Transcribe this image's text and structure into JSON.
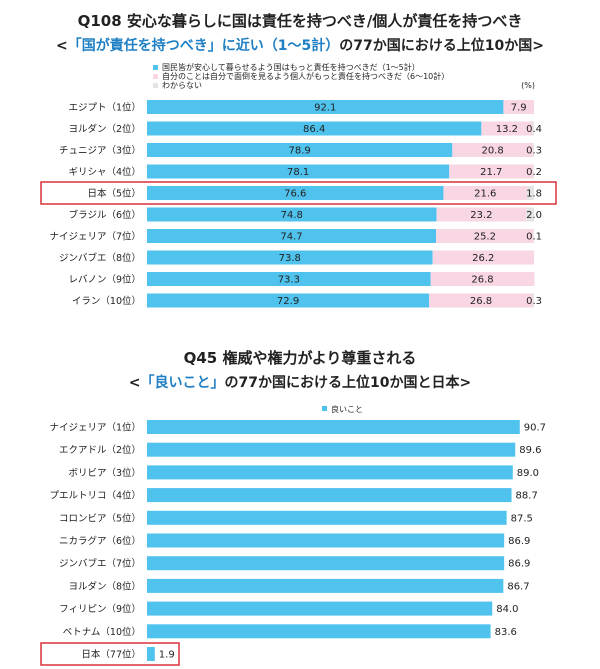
{
  "chart_data": [
    {
      "type": "bar",
      "stacked": true,
      "orientation": "horizontal",
      "title": "Q108 安心な暮らしに国は責任を持つべき/個人が責任を持つべき",
      "subtitle": {
        "open": "<",
        "highlight": "「国が責任を持つべき」に近い（1～5計）",
        "rest": "の77か国における上位10か国",
        "close": ">"
      },
      "unit_label": "(%)",
      "categories": [
        "エジプト（1位）",
        "ヨルダン（2位）",
        "チュニジア（3位）",
        "ギリシャ（4位）",
        "日本（5位）",
        "ブラジル（6位）",
        "ナイジェリア（7位）",
        "ジンバブエ（8位）",
        "レバノン（9位）",
        "イラン（10位）"
      ],
      "series": [
        {
          "name": "国民皆が安心して暮らせるよう国はもっと責任を持つべきだ（1～5計）",
          "color": "#4fc3ee",
          "values": [
            92.1,
            86.4,
            78.9,
            78.1,
            76.6,
            74.8,
            74.7,
            73.8,
            73.3,
            72.9
          ]
        },
        {
          "name": "自分のことは自分で面倒を見るよう個人がもっと責任を持つべきだ（6～10計）",
          "color": "#f9d6e4",
          "values": [
            7.9,
            13.2,
            20.8,
            21.7,
            21.6,
            23.2,
            25.2,
            26.2,
            26.8,
            26.8
          ]
        },
        {
          "name": "わからない",
          "color": "#e4e4e4",
          "values": [
            0,
            0.4,
            0.3,
            0.2,
            1.8,
            2.0,
            0.1,
            0,
            0,
            0.3
          ]
        }
      ],
      "label_strings": [
        [
          "92.1",
          "7.9",
          ""
        ],
        [
          "86.4",
          "13.2",
          "0.4"
        ],
        [
          "78.9",
          "20.8",
          "0.3"
        ],
        [
          "78.1",
          "21.7",
          "0.2"
        ],
        [
          "76.6",
          "21.6",
          "1.8"
        ],
        [
          "74.8",
          "23.2",
          "2.0"
        ],
        [
          "74.7",
          "25.2",
          "0.1"
        ],
        [
          "73.8",
          "26.2",
          ""
        ],
        [
          "73.3",
          "26.8",
          ""
        ],
        [
          "72.9",
          "26.8",
          "0.3"
        ]
      ],
      "xlim": [
        0,
        100
      ],
      "highlight_category": "日本（5位）",
      "highlight_color": "#d9323a"
    },
    {
      "type": "bar",
      "orientation": "horizontal",
      "title": "Q45 権威や権力がより尊重される",
      "subtitle": {
        "open": "<",
        "highlight": "「良いこと」",
        "rest": "の77か国における上位10か国と日本",
        "close": ">"
      },
      "categories": [
        "ナイジェリア（1位）",
        "エクアドル（2位）",
        "ボリビア（3位）",
        "プエルトリコ（4位）",
        "コロンビア（5位）",
        "ニカラグア（6位）",
        "ジンバブエ（7位）",
        "ヨルダン（8位）",
        "フィリピン（9位）",
        "ベトナム（10位）",
        "日本（77位）"
      ],
      "series": [
        {
          "name": "良いこと",
          "color": "#4fc3ee",
          "values": [
            90.7,
            89.6,
            89.0,
            88.7,
            87.5,
            86.9,
            86.9,
            86.7,
            84.0,
            83.6,
            1.9
          ]
        }
      ],
      "label_strings": [
        "90.7",
        "89.6",
        "89.0",
        "88.7",
        "87.5",
        "86.9",
        "86.9",
        "86.7",
        "84.0",
        "83.6",
        "1.9"
      ],
      "xlim": [
        0,
        100
      ],
      "highlight_category": "日本（77位）",
      "highlight_color": "#d9323a"
    }
  ]
}
